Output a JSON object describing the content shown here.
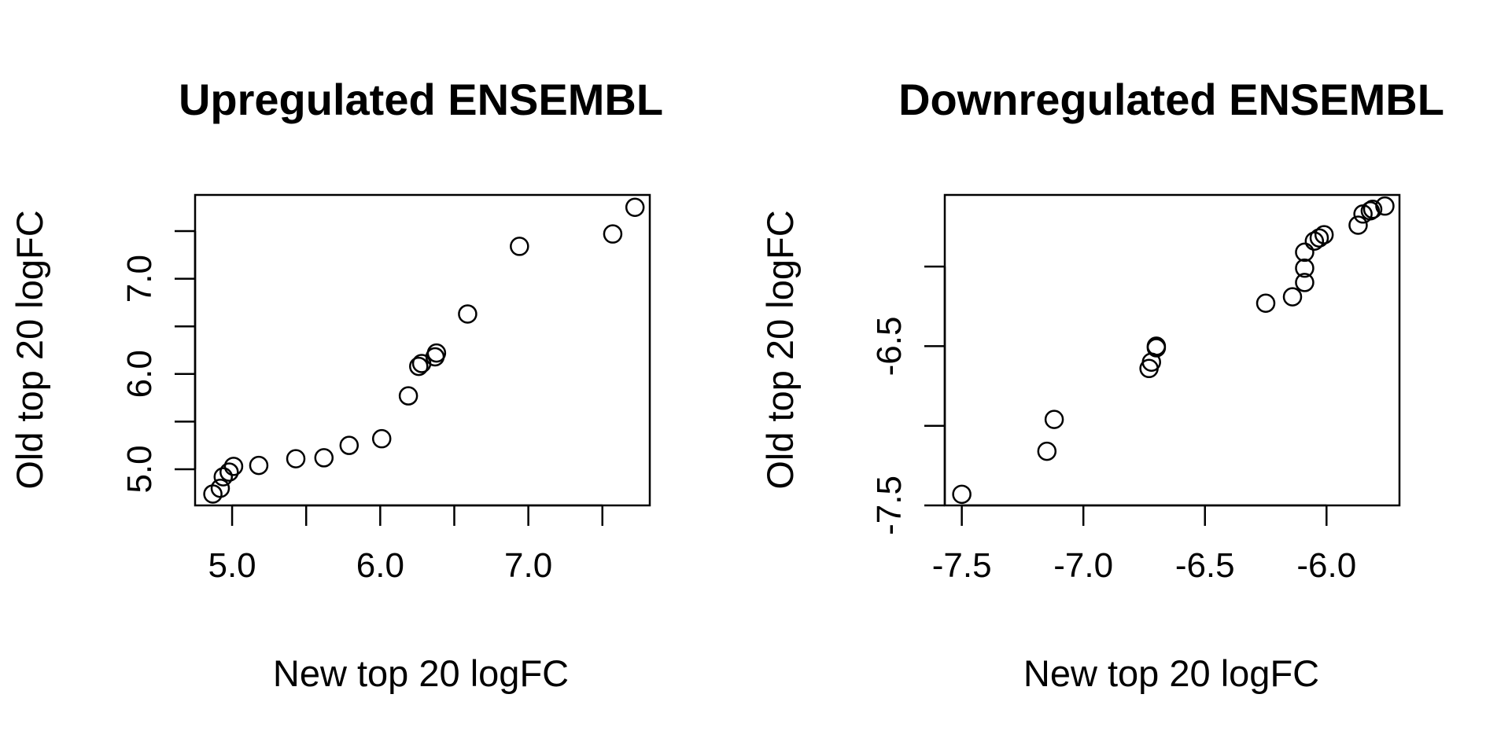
{
  "chart_data": [
    {
      "type": "scatter",
      "title": "Upregulated ENSEMBL",
      "xlabel": "New top 20 logFC",
      "ylabel": "Old top 20 logFC",
      "xlim": [
        4.75,
        7.82
      ],
      "ylim": [
        4.62,
        7.88
      ],
      "xticks": [
        5.0,
        5.5,
        6.0,
        6.5,
        7.0,
        7.5
      ],
      "xtick_labels": [
        "5.0",
        "",
        "6.0",
        "",
        "7.0",
        ""
      ],
      "yticks": [
        5.0,
        5.5,
        6.0,
        6.5,
        7.0,
        7.5
      ],
      "ytick_labels": [
        "5.0",
        "",
        "6.0",
        "",
        "7.0",
        ""
      ],
      "grid": false,
      "points": [
        {
          "x": 4.87,
          "y": 4.74
        },
        {
          "x": 4.92,
          "y": 4.8
        },
        {
          "x": 4.94,
          "y": 4.92
        },
        {
          "x": 4.98,
          "y": 4.97
        },
        {
          "x": 5.01,
          "y": 5.03
        },
        {
          "x": 5.18,
          "y": 5.04
        },
        {
          "x": 5.43,
          "y": 5.11
        },
        {
          "x": 5.62,
          "y": 5.12
        },
        {
          "x": 5.79,
          "y": 5.25
        },
        {
          "x": 6.01,
          "y": 5.32
        },
        {
          "x": 6.19,
          "y": 5.77
        },
        {
          "x": 6.26,
          "y": 6.08
        },
        {
          "x": 6.28,
          "y": 6.11
        },
        {
          "x": 6.37,
          "y": 6.18
        },
        {
          "x": 6.38,
          "y": 6.22
        },
        {
          "x": 6.59,
          "y": 6.63
        },
        {
          "x": 6.94,
          "y": 7.34
        },
        {
          "x": 7.57,
          "y": 7.47
        },
        {
          "x": 7.72,
          "y": 7.75
        }
      ]
    },
    {
      "type": "scatter",
      "title": "Downregulated ENSEMBL",
      "xlabel": "New top 20 logFC",
      "ylabel": "Old top 20 logFC",
      "xlim": [
        -7.57,
        -5.7
      ],
      "ylim": [
        -7.5,
        -5.55
      ],
      "xticks": [
        -7.5,
        -7.0,
        -6.5,
        -6.0
      ],
      "xtick_labels": [
        "-7.5",
        "-7.0",
        "-6.5",
        "-6.0"
      ],
      "yticks": [
        -7.5,
        -7.0,
        -6.5,
        -6.0
      ],
      "ytick_labels": [
        "-7.5",
        "",
        "-6.5",
        ""
      ],
      "grid": false,
      "points": [
        {
          "x": -7.5,
          "y": -7.43
        },
        {
          "x": -7.15,
          "y": -7.16
        },
        {
          "x": -7.12,
          "y": -6.96
        },
        {
          "x": -6.73,
          "y": -6.64
        },
        {
          "x": -6.72,
          "y": -6.6
        },
        {
          "x": -6.7,
          "y": -6.51
        },
        {
          "x": -6.7,
          "y": -6.5
        },
        {
          "x": -6.25,
          "y": -6.23
        },
        {
          "x": -6.14,
          "y": -6.19
        },
        {
          "x": -6.09,
          "y": -6.1
        },
        {
          "x": -6.09,
          "y": -6.01
        },
        {
          "x": -6.09,
          "y": -5.91
        },
        {
          "x": -6.05,
          "y": -5.84
        },
        {
          "x": -6.03,
          "y": -5.82
        },
        {
          "x": -6.01,
          "y": -5.8
        },
        {
          "x": -5.87,
          "y": -5.74
        },
        {
          "x": -5.85,
          "y": -5.67
        },
        {
          "x": -5.82,
          "y": -5.65
        },
        {
          "x": -5.81,
          "y": -5.64
        },
        {
          "x": -5.76,
          "y": -5.62
        }
      ]
    }
  ]
}
